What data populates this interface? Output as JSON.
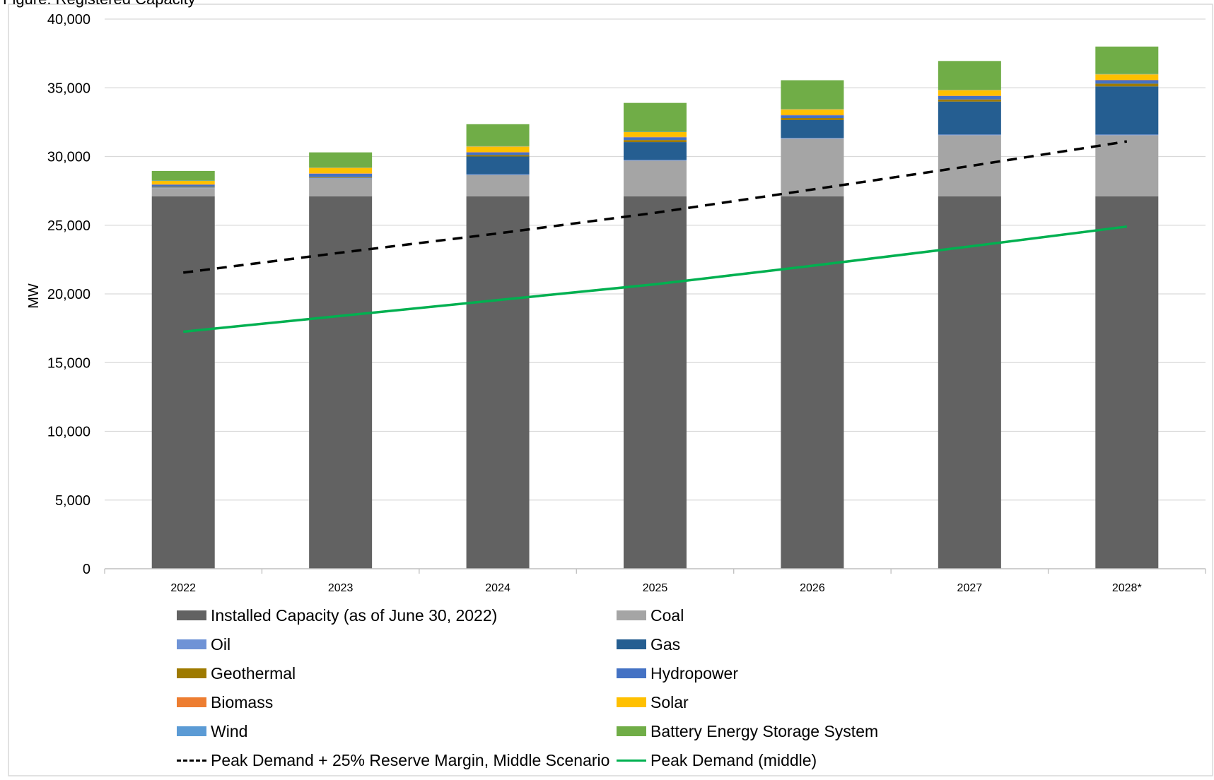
{
  "page_title": "Figure: Registered Capacity",
  "chart_data": {
    "type": "bar",
    "stacked": true,
    "title": "",
    "xlabel": "",
    "ylabel": "MW",
    "ylim": [
      0,
      40000
    ],
    "yticks": [
      0,
      5000,
      10000,
      15000,
      20000,
      25000,
      30000,
      35000,
      40000
    ],
    "ytick_labels": [
      "0",
      "5,000",
      "10,000",
      "15,000",
      "20,000",
      "25,000",
      "30,000",
      "35,000",
      "40,000"
    ],
    "grid": true,
    "legend_position": "bottom",
    "categories": [
      "2022",
      "2023",
      "2024",
      "2025",
      "2026",
      "2027",
      "2028*"
    ],
    "series": [
      {
        "name": "Installed Capacity (as of June 30, 2022)",
        "color": "#626262",
        "values": [
          27100,
          27100,
          27100,
          27100,
          27100,
          27100,
          27100
        ]
      },
      {
        "name": "Coal",
        "color": "#a5a5a5",
        "values": [
          600,
          1300,
          1550,
          2600,
          4200,
          4450,
          4450
        ]
      },
      {
        "name": "Oil",
        "color": "#6f93d6",
        "values": [
          50,
          50,
          50,
          50,
          50,
          50,
          50
        ]
      },
      {
        "name": "Gas",
        "color": "#255e91",
        "values": [
          0,
          0,
          1300,
          1300,
          1300,
          2400,
          3500
        ]
      },
      {
        "name": "Geothermal",
        "color": "#9e7a00",
        "values": [
          50,
          50,
          100,
          150,
          150,
          150,
          200
        ]
      },
      {
        "name": "Hydropower",
        "color": "#4472c4",
        "values": [
          150,
          250,
          200,
          200,
          200,
          250,
          250
        ]
      },
      {
        "name": "Biomass",
        "color": "#ed7d31",
        "values": [
          30,
          30,
          30,
          30,
          30,
          30,
          30
        ]
      },
      {
        "name": "Solar",
        "color": "#ffc000",
        "values": [
          250,
          400,
          400,
          350,
          400,
          400,
          400
        ]
      },
      {
        "name": "Wind",
        "color": "#5b9bd5",
        "values": [
          20,
          20,
          20,
          20,
          20,
          20,
          20
        ]
      },
      {
        "name": "Battery Energy Storage System",
        "color": "#70ad47",
        "values": [
          700,
          1100,
          1600,
          2100,
          2100,
          2100,
          2000
        ]
      }
    ],
    "lines": [
      {
        "name": "Peak Demand + 25% Reserve Margin, Middle Scenario",
        "color": "#000000",
        "style": "dashed",
        "values": [
          21550,
          23000,
          24400,
          25900,
          27600,
          29300,
          31100
        ]
      },
      {
        "name": "Peak Demand (middle)",
        "color": "#00b050",
        "style": "solid",
        "values": [
          17250,
          18400,
          19550,
          20700,
          22050,
          23450,
          24900
        ]
      }
    ]
  }
}
